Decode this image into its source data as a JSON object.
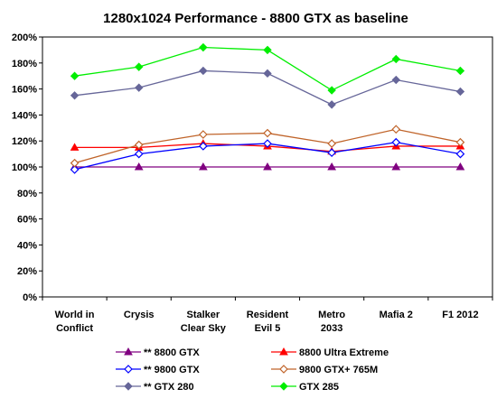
{
  "chart_data": {
    "type": "line",
    "title": "1280x1024 Performance - 8800 GTX as baseline",
    "xlabel": "",
    "ylabel": "",
    "categories": [
      [
        "World in",
        "Conflict"
      ],
      [
        "Crysis"
      ],
      [
        "Stalker",
        "Clear Sky"
      ],
      [
        "Resident",
        "Evil 5"
      ],
      [
        "Metro",
        "2033"
      ],
      [
        "Mafia 2"
      ],
      [
        "F1 2012"
      ]
    ],
    "ylim": [
      0,
      200
    ],
    "yticks": [
      "0%",
      "20%",
      "40%",
      "60%",
      "80%",
      "100%",
      "120%",
      "140%",
      "160%",
      "180%",
      "200%"
    ],
    "grid": false,
    "legend_position": "bottom",
    "series": [
      {
        "name": "** 8800 GTX",
        "color": "#800080",
        "marker": "triangle",
        "values": [
          100,
          100,
          100,
          100,
          100,
          100,
          100
        ]
      },
      {
        "name": "8800 Ultra Extreme",
        "color": "#ff0000",
        "marker": "triangle",
        "values": [
          115,
          115,
          118,
          116,
          112,
          116,
          116
        ]
      },
      {
        "name": "** 9800 GTX",
        "color": "#0000ff",
        "marker": "diamond-open",
        "values": [
          98,
          110,
          116,
          118,
          111,
          119,
          110
        ]
      },
      {
        "name": "9800 GTX+ 765M",
        "color": "#c0642a",
        "marker": "diamond-open",
        "values": [
          103,
          117,
          125,
          126,
          118,
          129,
          119
        ]
      },
      {
        "name": "** GTX 280",
        "color": "#666699",
        "marker": "diamond",
        "values": [
          155,
          161,
          174,
          172,
          148,
          167,
          158
        ]
      },
      {
        "name": "GTX 285",
        "color": "#00ee00",
        "marker": "diamond",
        "values": [
          170,
          177,
          192,
          190,
          159,
          183,
          174
        ]
      }
    ]
  }
}
